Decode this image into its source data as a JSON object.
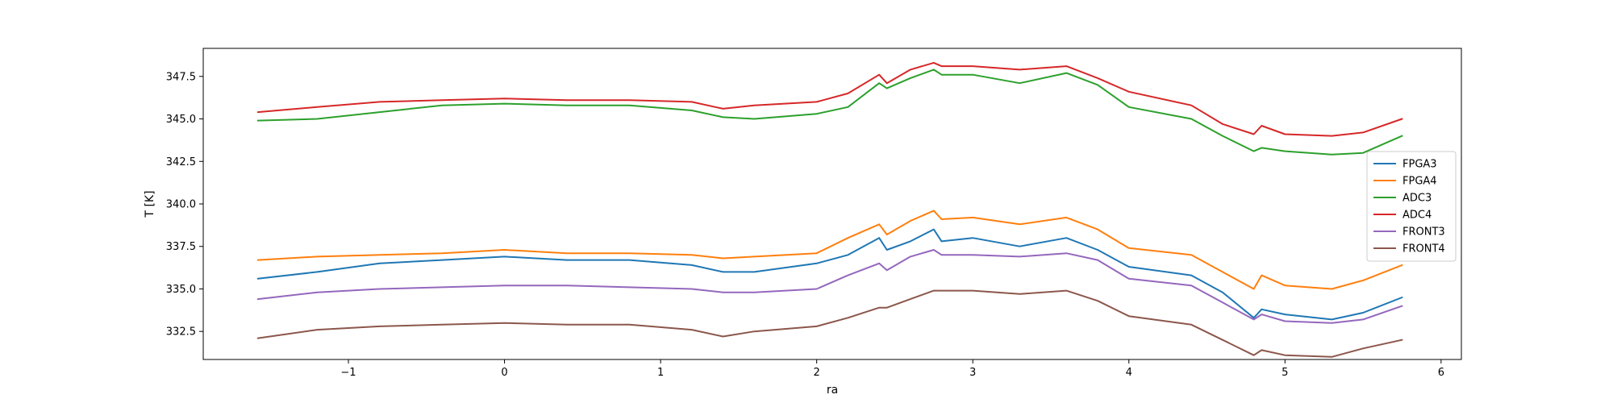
{
  "chart_data": {
    "type": "line",
    "title": "",
    "xlabel": "ra",
    "ylabel": "T [K]",
    "xlim": [
      -1.93,
      6.13
    ],
    "ylim": [
      330.85,
      349.15
    ],
    "xticks": [
      -1,
      0,
      1,
      2,
      3,
      4,
      5,
      6
    ],
    "xtick_labels": [
      "−1",
      "0",
      "1",
      "2",
      "3",
      "4",
      "5",
      "6"
    ],
    "yticks": [
      332.5,
      335.0,
      337.5,
      340.0,
      342.5,
      345.0,
      347.5
    ],
    "ytick_labels": [
      "332.5",
      "335.0",
      "337.5",
      "340.0",
      "342.5",
      "345.0",
      "347.5"
    ],
    "grid": false,
    "legend_position": "center-right",
    "x": [
      -1.58,
      -1.2,
      -0.8,
      -0.4,
      0,
      0.4,
      0.8,
      1.2,
      1.4,
      1.6,
      2.0,
      2.2,
      2.4,
      2.45,
      2.6,
      2.75,
      2.8,
      3.0,
      3.3,
      3.6,
      3.8,
      4.0,
      4.4,
      4.6,
      4.8,
      4.85,
      5.0,
      5.3,
      5.5,
      5.75
    ],
    "series": [
      {
        "name": "FPGA3",
        "color": "#1f77b4",
        "values": [
          335.6,
          336.0,
          336.5,
          336.7,
          336.9,
          336.7,
          336.7,
          336.4,
          336.0,
          336.0,
          336.5,
          337.0,
          338.0,
          337.3,
          337.8,
          338.5,
          337.8,
          338.0,
          337.5,
          338.0,
          337.3,
          336.3,
          335.8,
          334.8,
          333.3,
          333.8,
          333.5,
          333.2,
          333.6,
          334.5
        ]
      },
      {
        "name": "FPGA4",
        "color": "#ff7f0e",
        "values": [
          336.7,
          336.9,
          337.0,
          337.1,
          337.3,
          337.1,
          337.1,
          337.0,
          336.8,
          336.9,
          337.1,
          338.0,
          338.8,
          338.2,
          339.0,
          339.6,
          339.1,
          339.2,
          338.8,
          339.2,
          338.5,
          337.4,
          337.0,
          336.0,
          335.0,
          335.8,
          335.2,
          335.0,
          335.5,
          336.4
        ]
      },
      {
        "name": "ADC3",
        "color": "#2ca02c",
        "values": [
          344.9,
          345.0,
          345.4,
          345.8,
          345.9,
          345.8,
          345.8,
          345.5,
          345.1,
          345.0,
          345.3,
          345.7,
          347.1,
          346.8,
          347.4,
          347.9,
          347.6,
          347.6,
          347.1,
          347.7,
          347.0,
          345.7,
          345.0,
          344.0,
          343.1,
          343.3,
          343.1,
          342.9,
          343.0,
          344.0
        ]
      },
      {
        "name": "ADC4",
        "color": "#d62728",
        "values": [
          345.4,
          345.7,
          346.0,
          346.1,
          346.2,
          346.1,
          346.1,
          346.0,
          345.6,
          345.8,
          346.0,
          346.5,
          347.6,
          347.1,
          347.9,
          348.3,
          348.1,
          348.1,
          347.9,
          348.1,
          347.4,
          346.6,
          345.8,
          344.7,
          344.1,
          344.6,
          344.1,
          344.0,
          344.2,
          345.0
        ]
      },
      {
        "name": "FRONT3",
        "color": "#9467bd",
        "values": [
          334.4,
          334.8,
          335.0,
          335.1,
          335.2,
          335.2,
          335.1,
          335.0,
          334.8,
          334.8,
          335.0,
          335.8,
          336.5,
          336.1,
          336.9,
          337.3,
          337.0,
          337.0,
          336.9,
          337.1,
          336.7,
          335.6,
          335.2,
          334.2,
          333.2,
          333.5,
          333.1,
          333.0,
          333.2,
          334.0
        ]
      },
      {
        "name": "FRONT4",
        "color": "#8c564b",
        "values": [
          332.1,
          332.6,
          332.8,
          332.9,
          333.0,
          332.9,
          332.9,
          332.6,
          332.2,
          332.5,
          332.8,
          333.3,
          333.9,
          333.9,
          334.4,
          334.9,
          334.9,
          334.9,
          334.7,
          334.9,
          334.3,
          333.4,
          332.9,
          332.0,
          331.1,
          331.4,
          331.1,
          331.0,
          331.5,
          332.0
        ]
      }
    ]
  }
}
